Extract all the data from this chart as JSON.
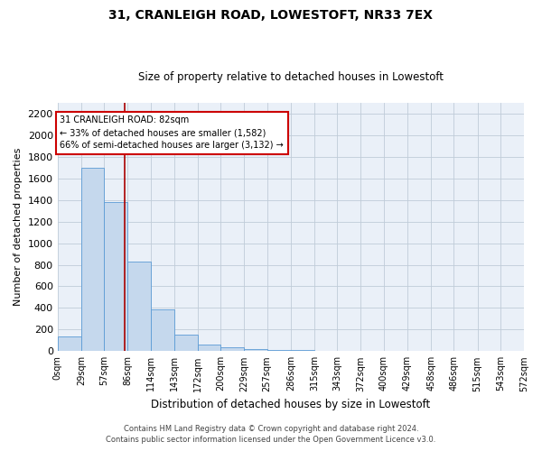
{
  "title": "31, CRANLEIGH ROAD, LOWESTOFT, NR33 7EX",
  "subtitle": "Size of property relative to detached houses in Lowestoft",
  "xlabel": "Distribution of detached houses by size in Lowestoft",
  "ylabel": "Number of detached properties",
  "bar_color": "#c5d8ed",
  "bar_edge_color": "#5b9bd5",
  "background_color": "#eaf0f8",
  "annotation_text": "31 CRANLEIGH ROAD: 82sqm\n← 33% of detached houses are smaller (1,582)\n66% of semi-detached houses are larger (3,132) →",
  "vline_x": 82,
  "vline_color": "#aa0000",
  "bin_edges": [
    0,
    29,
    57,
    86,
    114,
    143,
    172,
    200,
    229,
    257,
    286,
    315,
    343,
    372,
    400,
    429,
    458,
    486,
    515,
    543,
    572
  ],
  "bar_heights": [
    140,
    1700,
    1380,
    830,
    390,
    155,
    60,
    40,
    20,
    15,
    10,
    5,
    3,
    2,
    1,
    1,
    0,
    0,
    0,
    0
  ],
  "ylim": [
    0,
    2300
  ],
  "yticks": [
    0,
    200,
    400,
    600,
    800,
    1000,
    1200,
    1400,
    1600,
    1800,
    2000,
    2200
  ],
  "footer_line1": "Contains HM Land Registry data © Crown copyright and database right 2024.",
  "footer_line2": "Contains public sector information licensed under the Open Government Licence v3.0.",
  "grid_color": "#c0ccd8",
  "title_fontsize": 10,
  "subtitle_fontsize": 8.5,
  "ylabel_fontsize": 8,
  "xlabel_fontsize": 8.5
}
